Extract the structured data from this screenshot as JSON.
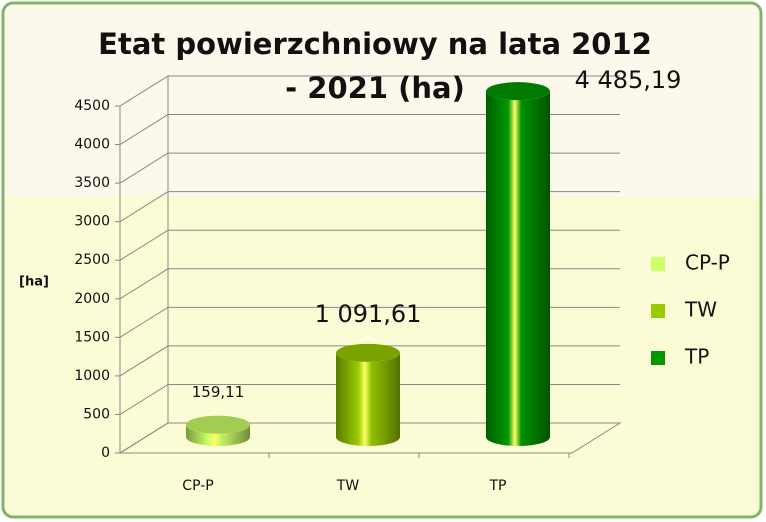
{
  "chart_data": {
    "type": "bar3d",
    "title": "Etat powierzchniowy na lata 2012 - 2021 (ha)",
    "y_label": "[ha]",
    "categories": [
      "CP-P",
      "TW",
      "TP"
    ],
    "values": [
      159.11,
      1091.61,
      4485.19
    ],
    "value_labels": [
      "159,11",
      "1 091,61",
      "4 485,19"
    ],
    "colors": [
      "#ccff66",
      "#99cc00",
      "#009900"
    ],
    "ylim": [
      0,
      4500
    ],
    "yticks": [
      0,
      500,
      1000,
      1500,
      2000,
      2500,
      3000,
      3500,
      4000,
      4500
    ],
    "grid": true,
    "legend": "right"
  }
}
